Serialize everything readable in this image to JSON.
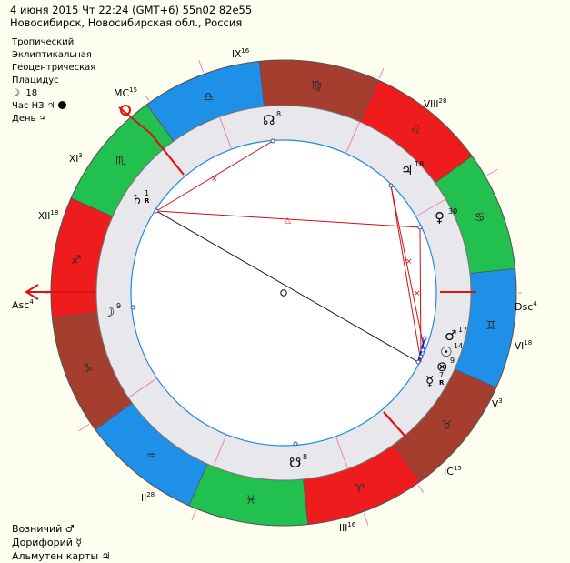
{
  "header": {
    "line1": "4 июня 2015  Чт  22:24 (GMT+6) 55n02  82e55",
    "line2": "Новосибирск, Новосибирская обл., Россия"
  },
  "info": {
    "zodiac": "Тропический",
    "coords": "Эклиптикальная",
    "center": "Геоцентрическая",
    "houses": "Плацидус",
    "moon_glyph": "☽",
    "moon_value": "18",
    "hour_label": "Час НЗ",
    "hour_glyph": "♃",
    "day_label": "День",
    "day_glyph": "♃"
  },
  "footer": {
    "vozn_label": "Возничий",
    "vozn_glyph": "♂",
    "dor_label": "Дорифорий",
    "dor_glyph": "☿",
    "alm_label": "Альмутен карты",
    "alm_glyph": "♃"
  },
  "chart": {
    "angles": {
      "asc": "Asc",
      "asc_deg": "4",
      "dsc": "Dsc",
      "dsc_deg": "4",
      "mc": "MC",
      "mc_deg": "15",
      "ic": "IC",
      "ic_deg": "15"
    },
    "houses": [
      {
        "label": "II",
        "deg": "28"
      },
      {
        "label": "III",
        "deg": "16"
      },
      {
        "label": "V",
        "deg": "3"
      },
      {
        "label": "VI",
        "deg": "18"
      },
      {
        "label": "VIII",
        "deg": "28"
      },
      {
        "label": "IX",
        "deg": "16"
      },
      {
        "label": "XI",
        "deg": "3"
      },
      {
        "label": "XII",
        "deg": "18"
      }
    ],
    "signs": [
      {
        "glyph": "♑",
        "color": "#a63e30"
      },
      {
        "glyph": "♒",
        "color": "#1e90e8"
      },
      {
        "glyph": "♓",
        "color": "#22c14f"
      },
      {
        "glyph": "♈",
        "color": "#ee1c1c"
      },
      {
        "glyph": "♉",
        "color": "#a63e30"
      },
      {
        "glyph": "♊",
        "color": "#1e90e8"
      },
      {
        "glyph": "♋",
        "color": "#22c14f"
      },
      {
        "glyph": "♌",
        "color": "#ee1c1c"
      },
      {
        "glyph": "♍",
        "color": "#a63e30"
      },
      {
        "glyph": "♎",
        "color": "#1e90e8"
      },
      {
        "glyph": "♏",
        "color": "#22c14f"
      },
      {
        "glyph": "♐",
        "color": "#ee1c1c"
      }
    ],
    "planets": [
      {
        "name": "saturn",
        "glyph": "♄",
        "deg": "1",
        "retro": "R"
      },
      {
        "name": "south-node",
        "glyph": "☊",
        "deg": "8",
        "retro": ""
      },
      {
        "name": "jupiter",
        "glyph": "♃",
        "deg": "18",
        "retro": ""
      },
      {
        "name": "venus",
        "glyph": "♀",
        "deg": "30",
        "retro": ""
      },
      {
        "name": "mars",
        "glyph": "♂",
        "deg": "17",
        "retro": ""
      },
      {
        "name": "sun",
        "glyph": "☉",
        "deg": "14",
        "retro": ""
      },
      {
        "name": "fortune",
        "glyph": "⊗",
        "deg": "9",
        "retro": ""
      },
      {
        "name": "mercury",
        "glyph": "☿",
        "deg": "7",
        "retro": "R"
      },
      {
        "name": "north-node",
        "glyph": "☋",
        "deg": "8",
        "retro": ""
      },
      {
        "name": "moon",
        "glyph": "☽",
        "deg": "9",
        "retro": ""
      }
    ]
  },
  "colors": {
    "background": "#fefef0",
    "aspect_red": "#d01010",
    "aspect_blue": "#1020d0",
    "ring_inner": "#e8e8ec",
    "pointer_red": "#dd1111"
  }
}
